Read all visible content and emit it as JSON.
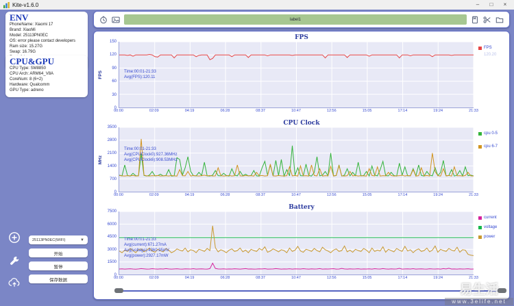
{
  "window": {
    "title": "Kite-v1.6.0",
    "controls": {
      "minimize": "–",
      "maximize": "□",
      "close": "×"
    }
  },
  "env_panel": {
    "title": "ENV",
    "lines": [
      "PhoneName: Xiaomi 17",
      "Brand: XiaoMi",
      "Model: 25113PN0EC",
      "OS: error please contact developers",
      "Ram size: 15.27G",
      "Swap: 16.79G",
      "Root: false",
      "Resolution: 1220x2656 520dpi"
    ]
  },
  "cpugpu_panel": {
    "title": "CPU&GPU",
    "lines": [
      "CPU Type: SM8850",
      "CPU Arch: ARM64_V8A",
      "CoreNum: 8 (6+2)",
      "Hardware: Qualcomm",
      "GPU Type: adreno"
    ]
  },
  "toolbar": {
    "label": "label1",
    "left_icons": [
      "timer-icon",
      "screenshot-icon"
    ],
    "right_icons": [
      "save-icon",
      "scissors-icon",
      "folder-icon"
    ]
  },
  "sidebar": {
    "icons": [
      "add-circle-icon",
      "wrench-icon",
      "cloud-upload-icon"
    ]
  },
  "controls": {
    "device": "25113PN0EC(WIFI)",
    "start": "开始",
    "pause": "暂停",
    "save": "保存数据"
  },
  "watermark": {
    "text": "易生活",
    "url": "www.3elife.net"
  },
  "colors": {
    "background": "#7b86c6",
    "label_bar": "#a7c791",
    "fps": "#e64545",
    "cpu_small": "#33b33a",
    "cpu_big": "#d1941f",
    "current": "#d6219c",
    "voltage": "#16b84c",
    "power": "#c9992e",
    "axis_text": "#3448d0"
  },
  "chart_data": [
    {
      "type": "line",
      "title": "FPS",
      "ylabel": "FPS",
      "ylim": [
        0,
        150
      ],
      "yticks": [
        0,
        30,
        60,
        90,
        120,
        150
      ],
      "xticks": [
        "00:00",
        "02:09",
        "04:19",
        "06:28",
        "08:37",
        "10:47",
        "12:56",
        "15:05",
        "17:14",
        "19:24",
        "21:33"
      ],
      "grid": true,
      "legend_position": "right",
      "annotation": [
        "Time:00:01-21:33",
        "Avg(FPS):120.11"
      ],
      "annotation_top_pct": 42,
      "legend": [
        {
          "label": "FPS",
          "sub": "120.20",
          "color": "#e64545"
        }
      ],
      "series": [
        {
          "name": "FPS",
          "color": "#e64545",
          "values": [
            120,
            120,
            120,
            119,
            120,
            117,
            120,
            120,
            120,
            120,
            120,
            121,
            120,
            116,
            115,
            120,
            120,
            120,
            120,
            120,
            113,
            120,
            120,
            120,
            120,
            120,
            120,
            120,
            116,
            119,
            120,
            120,
            120,
            109,
            112,
            120,
            120,
            120,
            120,
            120,
            120,
            116,
            120,
            120,
            120,
            120,
            120,
            114,
            120,
            120,
            120,
            120,
            120,
            120,
            118,
            120,
            120,
            120,
            120,
            120,
            120,
            120,
            120,
            119,
            120,
            120,
            120,
            120,
            120,
            120,
            120,
            120,
            120,
            120,
            120,
            113,
            120,
            120,
            120,
            120,
            120,
            120,
            120,
            114,
            120,
            120,
            120,
            120,
            120,
            120,
            120,
            117,
            120,
            120,
            120,
            120,
            120,
            120,
            120,
            120,
            120,
            120,
            113,
            120,
            120,
            120,
            118,
            120,
            120,
            120,
            120,
            120,
            120,
            120,
            116,
            120,
            120,
            120,
            120,
            120,
            120,
            119,
            120,
            120,
            120,
            120,
            120,
            120,
            120,
            120
          ]
        }
      ]
    },
    {
      "type": "line",
      "title": "CPU Clock",
      "ylabel": "MHz",
      "ylim": [
        0,
        3500
      ],
      "yticks": [
        0,
        700,
        1400,
        2100,
        2800,
        3500
      ],
      "xticks": [
        "00:00",
        "02:09",
        "04:19",
        "06:28",
        "08:37",
        "10:47",
        "12:56",
        "15:05",
        "17:14",
        "19:24",
        "21:33"
      ],
      "grid": true,
      "legend_position": "right",
      "annotation": [
        "Time:00:01-21:33",
        "Avg(CPUClock0):927.36MHz",
        "Avg(CPUClock6):908.53MHz"
      ],
      "annotation_top_pct": 30,
      "legend": [
        {
          "label": "cpu 0-5",
          "color": "#33b33a"
        },
        {
          "label": "cpu 6-7",
          "color": "#d1941f"
        }
      ],
      "series": [
        {
          "name": "cpu 0-5",
          "color": "#33b33a",
          "values": [
            900,
            860,
            1450,
            880,
            850,
            1000,
            870,
            860,
            2050,
            880,
            850,
            900,
            1100,
            860,
            870,
            950,
            860,
            880,
            1200,
            850,
            860,
            1850,
            1750,
            900,
            1300,
            1900,
            1100,
            870,
            860,
            1050,
            880,
            1600,
            860,
            850,
            900,
            1150,
            870,
            860,
            1000,
            880,
            850,
            1250,
            900,
            860,
            1100,
            870,
            950,
            860,
            880,
            1150,
            860,
            850,
            1300,
            1650,
            900,
            1450,
            860,
            1700,
            880,
            1750,
            850,
            1200,
            860,
            2500,
            900,
            1300,
            870,
            860,
            1500,
            880,
            850,
            1050,
            1900,
            860,
            900,
            1100,
            870,
            2100,
            860,
            880,
            1450,
            850,
            900,
            1250,
            860,
            1050,
            870,
            1600,
            860,
            880,
            1100,
            850,
            1400,
            900,
            860,
            1200,
            1650,
            870,
            860,
            1050,
            880,
            850,
            1550,
            900,
            1350,
            860,
            870,
            1250,
            860,
            1450,
            880,
            850,
            1100,
            900,
            860,
            1300,
            870,
            1050,
            1700,
            860,
            880,
            1200,
            850,
            900,
            1150,
            860,
            1350,
            870,
            900,
            860
          ]
        },
        {
          "name": "cpu 6-7",
          "color": "#d1941f",
          "values": [
            880,
            860,
            850,
            870,
            860,
            880,
            850,
            860,
            2870,
            900,
            860,
            850,
            870,
            860,
            880,
            850,
            860,
            870,
            850,
            880,
            860,
            850,
            1200,
            870,
            860,
            1100,
            850,
            880,
            860,
            850,
            870,
            900,
            860,
            880,
            850,
            860,
            1300,
            870,
            850,
            860,
            880,
            850,
            870,
            1450,
            860,
            850,
            880,
            860,
            870,
            850,
            1050,
            860,
            880,
            850,
            870,
            1500,
            860,
            850,
            880,
            860,
            850,
            870,
            1350,
            860,
            880,
            850,
            1400,
            860,
            870,
            850,
            1450,
            880,
            860,
            1250,
            850,
            870,
            860,
            1380,
            850,
            880,
            1420,
            860,
            850,
            870,
            1100,
            860,
            880,
            850,
            870,
            860,
            850,
            1250,
            880,
            860,
            1350,
            850,
            870,
            860,
            1050,
            880,
            850,
            860,
            870,
            900,
            850,
            880,
            860,
            1200,
            850,
            870,
            1300,
            860,
            880,
            850,
            2100,
            1100,
            870,
            850,
            1250,
            860,
            880,
            850,
            1350,
            860,
            870,
            850,
            880,
            1050,
            860,
            850
          ]
        }
      ]
    },
    {
      "type": "line",
      "title": "Battery",
      "ylabel": "",
      "ylim": [
        0,
        7500
      ],
      "yticks": [
        0,
        1500,
        3000,
        4500,
        6000,
        7500
      ],
      "xticks": [
        "00:00",
        "02:09",
        "04:19",
        "06:28",
        "08:37",
        "10:47",
        "12:56",
        "15:05",
        "17:14",
        "19:24",
        "21:33"
      ],
      "grid": true,
      "legend_position": "right",
      "annotation": [
        "Time:00:01-21:33",
        "Avg(current):671.27mA",
        "Avg(voltage):4360.95mV",
        "Avg(power):2927.17mW"
      ],
      "annotation_top_pct": 40,
      "legend": [
        {
          "label": "current",
          "color": "#d6219c"
        },
        {
          "label": "voltage",
          "color": "#16b84c"
        },
        {
          "label": "power",
          "color": "#c9992e"
        }
      ],
      "series": [
        {
          "name": "current",
          "color": "#d6219c",
          "values": [
            650,
            670,
            640,
            660,
            680,
            650,
            630,
            660,
            700,
            670,
            640,
            650,
            690,
            660,
            640,
            670,
            650,
            700,
            660,
            640,
            660,
            680,
            650,
            640,
            670,
            660,
            650,
            690,
            640,
            660,
            670,
            650,
            640,
            700,
            1350,
            720,
            660,
            650,
            670,
            640,
            660,
            650,
            680,
            660,
            640,
            670,
            700,
            650,
            660,
            640,
            650,
            670,
            660,
            690,
            640,
            650,
            660,
            700,
            670,
            640,
            660,
            650,
            680,
            640,
            670,
            660,
            650,
            690,
            660,
            640,
            670,
            650,
            660,
            700,
            640,
            660,
            650,
            670,
            690,
            640,
            650,
            720,
            660,
            640,
            670,
            650,
            660,
            680,
            640,
            660,
            650,
            670,
            640,
            690,
            660,
            650,
            700,
            660,
            640,
            670,
            650,
            660,
            730,
            640,
            660,
            670,
            650,
            690,
            640,
            660,
            670,
            650,
            640,
            680,
            660,
            650,
            670,
            640,
            700,
            660,
            740,
            650,
            660,
            640,
            670,
            650,
            660,
            680,
            640,
            650
          ]
        },
        {
          "name": "voltage",
          "color": "#16b84c",
          "values": [
            4400,
            4400
          ]
        },
        {
          "name": "power",
          "color": "#c9992e",
          "values": [
            2800,
            2600,
            2900,
            2750,
            3100,
            2850,
            2600,
            2950,
            3050,
            2700,
            2900,
            3150,
            2800,
            2650,
            3000,
            2850,
            2700,
            3100,
            2900,
            2600,
            2750,
            3050,
            2900,
            2800,
            3150,
            2700,
            2950,
            2850,
            2600,
            3000,
            2900,
            2750,
            3100,
            2850,
            5800,
            3200,
            2700,
            2950,
            2800,
            2600,
            2900,
            3050,
            2750,
            2850,
            3150,
            2700,
            2900,
            2600,
            3000,
            2850,
            2750,
            3100,
            2900,
            3300,
            2650,
            2800,
            3050,
            2900,
            2700,
            2950,
            2850,
            2600,
            3150,
            2750,
            2900,
            3350,
            2800,
            2650,
            3000,
            2900,
            2750,
            3100,
            2850,
            2700,
            3250,
            2950,
            2800,
            2600,
            2900,
            3050,
            2750,
            2850,
            3400,
            2700,
            2900,
            2650,
            3000,
            2850,
            2750,
            3100,
            2900,
            2600,
            3150,
            2750,
            2900,
            2800,
            3300,
            2650,
            3000,
            2850,
            2700,
            3100,
            2900,
            2750,
            3350,
            2800,
            2950,
            2600,
            2900,
            3050,
            2750,
            2850,
            3150,
            2700,
            2900,
            3400,
            2650,
            3000,
            2850,
            2750,
            3100,
            2900,
            2800,
            3250,
            2650,
            2950,
            2900,
            2400,
            2300,
            2250
          ]
        }
      ]
    }
  ]
}
